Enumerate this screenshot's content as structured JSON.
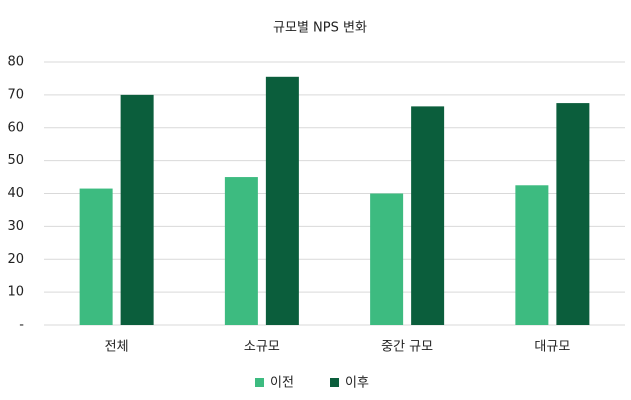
{
  "chart_data": {
    "type": "bar",
    "title": "규모별 NPS 변화",
    "categories": [
      "전체",
      "소규모",
      "중간 규모",
      "대규모"
    ],
    "series": [
      {
        "name": "이전",
        "color": "#3dbb80",
        "values": [
          41.5,
          45,
          40,
          42.5
        ]
      },
      {
        "name": "이후",
        "color": "#0b5e3c",
        "values": [
          70,
          75.5,
          66.5,
          67.5
        ]
      }
    ],
    "ylim": [
      0,
      80
    ],
    "yticks": [
      {
        "value": 0,
        "label": "-"
      },
      10,
      20,
      30,
      40,
      50,
      60,
      70,
      80
    ],
    "grid": true,
    "legend": "bottom"
  }
}
